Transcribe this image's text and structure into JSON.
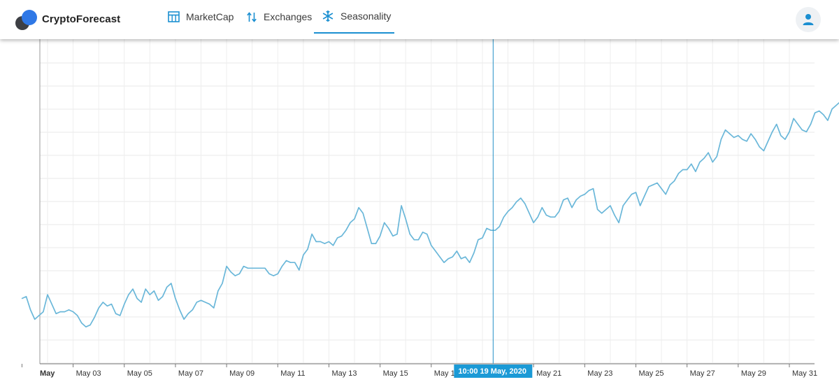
{
  "brand": {
    "name": "CryptoForecast"
  },
  "nav": {
    "items": [
      {
        "label": "MarketCap",
        "icon": "table-icon"
      },
      {
        "label": "Exchanges",
        "icon": "swap-vertical-icon"
      },
      {
        "label": "Seasonality",
        "icon": "snowflake-icon",
        "active": true
      }
    ]
  },
  "user": {
    "icon": "user-icon"
  },
  "colors": {
    "accent": "#1b8fd1",
    "line": "#6ab7d9",
    "cursor_label_bg": "#1b9ad6"
  },
  "chart_data": {
    "type": "line",
    "xlabel": "",
    "ylabel": "",
    "grid": true,
    "x_range": [
      0,
      31
    ],
    "ylim": [
      0,
      14
    ],
    "x_ticks": [
      {
        "day": 0,
        "label": "May",
        "bold": true
      },
      {
        "day": 2,
        "label": "May 03"
      },
      {
        "day": 4,
        "label": "May 05"
      },
      {
        "day": 6,
        "label": "May 07"
      },
      {
        "day": 8,
        "label": "May 09"
      },
      {
        "day": 10,
        "label": "May 11"
      },
      {
        "day": 12,
        "label": "May 13"
      },
      {
        "day": 14,
        "label": "May 15"
      },
      {
        "day": 16,
        "label": "May 1"
      },
      {
        "day": 20,
        "label": "May 21"
      },
      {
        "day": 22,
        "label": "May 23"
      },
      {
        "day": 24,
        "label": "May 25"
      },
      {
        "day": 26,
        "label": "May 27"
      },
      {
        "day": 28,
        "label": "May 29"
      },
      {
        "day": 30,
        "label": "May 31"
      }
    ],
    "cursor": {
      "day": 18.42,
      "label": "10:00 19 May, 2020"
    },
    "series": [
      {
        "step_hours": 4,
        "values": [
          2.6,
          2.7,
          2.0,
          1.5,
          1.7,
          1.9,
          2.8,
          2.3,
          1.8,
          1.9,
          1.9,
          2.0,
          1.9,
          1.7,
          1.3,
          1.1,
          1.2,
          1.6,
          2.1,
          2.4,
          2.2,
          2.3,
          1.8,
          1.7,
          2.3,
          2.8,
          3.1,
          2.6,
          2.4,
          3.1,
          2.8,
          3.0,
          2.5,
          2.7,
          3.2,
          3.4,
          2.6,
          2.0,
          1.5,
          1.8,
          2.0,
          2.4,
          2.5,
          2.4,
          2.3,
          2.1,
          3.0,
          3.4,
          4.3,
          4.0,
          3.8,
          3.9,
          4.3,
          4.2,
          4.2,
          4.2,
          4.2,
          4.2,
          3.9,
          3.8,
          3.9,
          4.3,
          4.6,
          4.5,
          4.5,
          4.1,
          4.9,
          5.2,
          6.0,
          5.6,
          5.6,
          5.5,
          5.6,
          5.4,
          5.8,
          5.9,
          6.2,
          6.6,
          6.8,
          7.4,
          7.1,
          6.3,
          5.5,
          5.5,
          5.9,
          6.6,
          6.3,
          5.9,
          6.0,
          7.5,
          6.8,
          6.0,
          5.7,
          5.7,
          6.1,
          6.0,
          5.4,
          5.1,
          4.8,
          4.5,
          4.7,
          4.8,
          5.1,
          4.7,
          4.8,
          4.5,
          5.0,
          5.7,
          5.8,
          6.3,
          6.2,
          6.2,
          6.4,
          6.9,
          7.2,
          7.4,
          7.7,
          7.9,
          7.6,
          7.1,
          6.6,
          6.9,
          7.4,
          7.0,
          6.9,
          6.9,
          7.2,
          7.8,
          7.9,
          7.4,
          7.8,
          8.0,
          8.1,
          8.3,
          8.4,
          7.3,
          7.1,
          7.3,
          7.5,
          7.0,
          6.6,
          7.5,
          7.8,
          8.1,
          8.2,
          7.5,
          8.0,
          8.5,
          8.6,
          8.7,
          8.4,
          8.1,
          8.6,
          8.8,
          9.2,
          9.4,
          9.4,
          9.7,
          9.3,
          9.8,
          10.0,
          10.3,
          9.8,
          10.1,
          11.0,
          11.5,
          11.3,
          11.1,
          11.2,
          11.0,
          10.9,
          11.3,
          11.0,
          10.6,
          10.4,
          10.9,
          11.4,
          11.8,
          11.2,
          11.0,
          11.4,
          12.1,
          11.8,
          11.5,
          11.4,
          11.8,
          12.4,
          12.5,
          12.3,
          12.0,
          12.6,
          12.8,
          13.0,
          12.7,
          12.3
        ]
      }
    ]
  }
}
